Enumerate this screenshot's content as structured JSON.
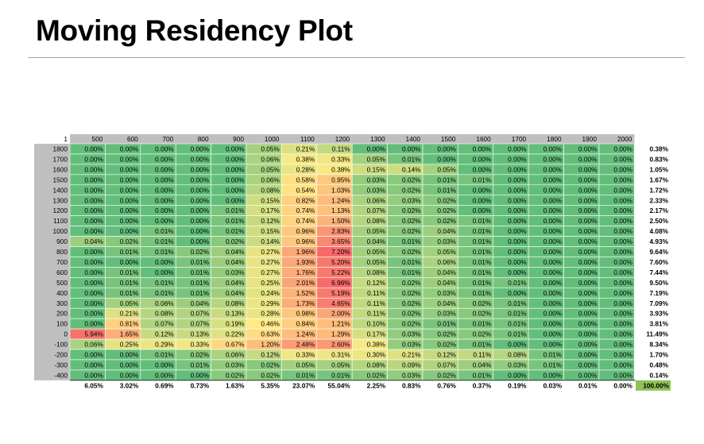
{
  "title": "Moving Residency Plot",
  "chart_data": {
    "type": "heatmap",
    "corner_label": "1",
    "columns": [
      "500",
      "600",
      "700",
      "800",
      "900",
      "1000",
      "1100",
      "1200",
      "1300",
      "1400",
      "1500",
      "1600",
      "1700",
      "1800",
      "1900",
      "2000"
    ],
    "rows": [
      "1800",
      "1700",
      "1600",
      "1500",
      "1400",
      "1300",
      "1200",
      "1100",
      "1000",
      "900",
      "800",
      "700",
      "600",
      "500",
      "400",
      "300",
      "200",
      "100",
      "0",
      "-100",
      "-200",
      "-300",
      "-400"
    ],
    "values": [
      [
        "0.00%",
        "0.00%",
        "0.00%",
        "0.00%",
        "0.00%",
        "0.05%",
        "0.21%",
        "0.11%",
        "0.00%",
        "0.00%",
        "0.00%",
        "0.00%",
        "0.00%",
        "0.00%",
        "0.00%",
        "0.00%"
      ],
      [
        "0.00%",
        "0.00%",
        "0.00%",
        "0.00%",
        "0.00%",
        "0.06%",
        "0.38%",
        "0.33%",
        "0.05%",
        "0.01%",
        "0.00%",
        "0.00%",
        "0.00%",
        "0.00%",
        "0.00%",
        "0.00%"
      ],
      [
        "0.00%",
        "0.00%",
        "0.00%",
        "0.00%",
        "0.00%",
        "0.05%",
        "0.28%",
        "0.38%",
        "0.15%",
        "0.14%",
        "0.05%",
        "0.00%",
        "0.00%",
        "0.00%",
        "0.00%",
        "0.00%"
      ],
      [
        "0.00%",
        "0.00%",
        "0.00%",
        "0.00%",
        "0.00%",
        "0.06%",
        "0.58%",
        "0.95%",
        "0.03%",
        "0.02%",
        "0.01%",
        "0.01%",
        "0.00%",
        "0.00%",
        "0.00%",
        "0.00%"
      ],
      [
        "0.00%",
        "0.00%",
        "0.00%",
        "0.00%",
        "0.00%",
        "0.08%",
        "0.54%",
        "1.03%",
        "0.03%",
        "0.02%",
        "0.01%",
        "0.00%",
        "0.00%",
        "0.00%",
        "0.00%",
        "0.00%"
      ],
      [
        "0.00%",
        "0.00%",
        "0.00%",
        "0.00%",
        "0.00%",
        "0.15%",
        "0.82%",
        "1.24%",
        "0.06%",
        "0.03%",
        "0.02%",
        "0.00%",
        "0.00%",
        "0.00%",
        "0.00%",
        "0.00%"
      ],
      [
        "0.00%",
        "0.00%",
        "0.00%",
        "0.00%",
        "0.01%",
        "0.17%",
        "0.74%",
        "1.13%",
        "0.07%",
        "0.02%",
        "0.02%",
        "0.00%",
        "0.00%",
        "0.00%",
        "0.00%",
        "0.00%"
      ],
      [
        "0.00%",
        "0.00%",
        "0.00%",
        "0.00%",
        "0.01%",
        "0.12%",
        "0.74%",
        "1.50%",
        "0.08%",
        "0.02%",
        "0.02%",
        "0.01%",
        "0.00%",
        "0.00%",
        "0.00%",
        "0.00%"
      ],
      [
        "0.00%",
        "0.00%",
        "0.01%",
        "0.00%",
        "0.01%",
        "0.15%",
        "0.96%",
        "2.83%",
        "0.05%",
        "0.02%",
        "0.04%",
        "0.01%",
        "0.00%",
        "0.00%",
        "0.00%",
        "0.00%"
      ],
      [
        "0.04%",
        "0.02%",
        "0.01%",
        "0.00%",
        "0.02%",
        "0.14%",
        "0.96%",
        "3.65%",
        "0.04%",
        "0.01%",
        "0.03%",
        "0.01%",
        "0.00%",
        "0.00%",
        "0.00%",
        "0.00%"
      ],
      [
        "0.00%",
        "0.01%",
        "0.01%",
        "0.02%",
        "0.04%",
        "0.27%",
        "1.96%",
        "7.20%",
        "0.05%",
        "0.02%",
        "0.05%",
        "0.01%",
        "0.00%",
        "0.00%",
        "0.00%",
        "0.00%"
      ],
      [
        "0.00%",
        "0.00%",
        "0.00%",
        "0.01%",
        "0.04%",
        "0.27%",
        "1.93%",
        "5.20%",
        "0.05%",
        "0.01%",
        "0.06%",
        "0.01%",
        "0.00%",
        "0.00%",
        "0.00%",
        "0.00%"
      ],
      [
        "0.00%",
        "0.01%",
        "0.00%",
        "0.01%",
        "0.03%",
        "0.27%",
        "1.76%",
        "5.22%",
        "0.08%",
        "0.01%",
        "0.04%",
        "0.01%",
        "0.00%",
        "0.00%",
        "0.00%",
        "0.00%"
      ],
      [
        "0.00%",
        "0.01%",
        "0.01%",
        "0.01%",
        "0.04%",
        "0.25%",
        "2.01%",
        "6.96%",
        "0.12%",
        "0.02%",
        "0.04%",
        "0.01%",
        "0.01%",
        "0.00%",
        "0.00%",
        "0.00%"
      ],
      [
        "0.00%",
        "0.01%",
        "0.01%",
        "0.01%",
        "0.04%",
        "0.24%",
        "1.52%",
        "5.19%",
        "0.11%",
        "0.02%",
        "0.03%",
        "0.01%",
        "0.00%",
        "0.00%",
        "0.00%",
        "0.00%"
      ],
      [
        "0.00%",
        "0.05%",
        "0.06%",
        "0.04%",
        "0.08%",
        "0.29%",
        "1.73%",
        "4.65%",
        "0.11%",
        "0.02%",
        "0.04%",
        "0.02%",
        "0.01%",
        "0.00%",
        "0.00%",
        "0.00%"
      ],
      [
        "0.00%",
        "0.21%",
        "0.08%",
        "0.07%",
        "0.13%",
        "0.28%",
        "0.98%",
        "2.00%",
        "0.11%",
        "0.02%",
        "0.03%",
        "0.02%",
        "0.01%",
        "0.00%",
        "0.00%",
        "0.00%"
      ],
      [
        "0.00%",
        "0.81%",
        "0.07%",
        "0.07%",
        "0.19%",
        "0.46%",
        "0.84%",
        "1.21%",
        "0.10%",
        "0.02%",
        "0.01%",
        "0.01%",
        "0.01%",
        "0.00%",
        "0.00%",
        "0.00%"
      ],
      [
        "5.94%",
        "1.65%",
        "0.12%",
        "0.13%",
        "0.22%",
        "0.63%",
        "1.24%",
        "1.29%",
        "0.17%",
        "0.03%",
        "0.02%",
        "0.02%",
        "0.01%",
        "0.00%",
        "0.00%",
        "0.00%"
      ],
      [
        "0.06%",
        "0.25%",
        "0.29%",
        "0.33%",
        "0.67%",
        "1.20%",
        "2.48%",
        "2.60%",
        "0.38%",
        "0.03%",
        "0.02%",
        "0.01%",
        "0.00%",
        "0.00%",
        "0.00%",
        "0.00%"
      ],
      [
        "0.00%",
        "0.00%",
        "0.01%",
        "0.02%",
        "0.06%",
        "0.12%",
        "0.33%",
        "0.31%",
        "0.30%",
        "0.21%",
        "0.12%",
        "0.11%",
        "0.08%",
        "0.01%",
        "0.00%",
        "0.00%"
      ],
      [
        "0.00%",
        "0.00%",
        "0.00%",
        "0.01%",
        "0.03%",
        "0.02%",
        "0.05%",
        "0.05%",
        "0.08%",
        "0.09%",
        "0.07%",
        "0.04%",
        "0.03%",
        "0.01%",
        "0.00%",
        "0.00%"
      ],
      [
        "0.00%",
        "0.00%",
        "0.00%",
        "0.00%",
        "0.02%",
        "0.02%",
        "0.01%",
        "0.01%",
        "0.02%",
        "0.03%",
        "0.02%",
        "0.01%",
        "0.00%",
        "0.00%",
        "0.00%",
        "0.00%"
      ]
    ],
    "row_totals": [
      "0.38%",
      "0.83%",
      "1.05%",
      "1.67%",
      "1.72%",
      "2.33%",
      "2.17%",
      "2.50%",
      "4.08%",
      "4.93%",
      "9.64%",
      "7.60%",
      "7.44%",
      "9.50%",
      "7.19%",
      "7.09%",
      "3.93%",
      "3.81%",
      "11.49%",
      "8.34%",
      "1.70%",
      "0.48%",
      "0.14%"
    ],
    "column_totals": [
      "6.05%",
      "3.02%",
      "0.69%",
      "0.73%",
      "1.63%",
      "5.35%",
      "23.07%",
      "55.04%",
      "2.25%",
      "0.83%",
      "0.76%",
      "0.37%",
      "0.19%",
      "0.03%",
      "0.01%",
      "0.00%"
    ],
    "grand_total": "100.00%"
  },
  "colors": {
    "low": "#63be7b",
    "mid": "#ffeb84",
    "high": "#f8696b",
    "header_fill": "#bfbfbf",
    "grand_total_fill": "#8ec257"
  }
}
